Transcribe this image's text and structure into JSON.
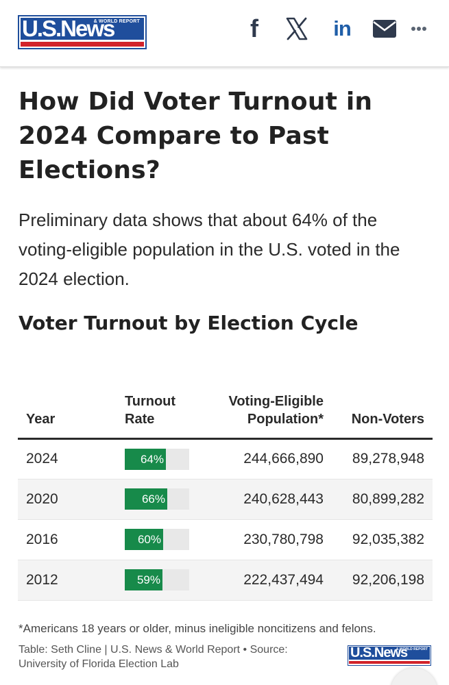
{
  "header": {
    "logo": {
      "main": "U.S.News",
      "sub": "& WORLD REPORT"
    },
    "share": {
      "facebook_label": "f",
      "linkedin_label": "in",
      "icons": [
        "facebook-icon",
        "x-icon",
        "linkedin-icon",
        "mail-icon",
        "more-icon"
      ]
    }
  },
  "article": {
    "title": "How Did Voter Turnout in 2024 Compare to Past Elections?",
    "intro": "Preliminary data shows that about 64% of the voting-eligible population in the U.S. voted in the 2024 election.",
    "table_title": "Voter Turnout by Election Cycle"
  },
  "table": {
    "headers": {
      "year": "Year",
      "rate": "Turnout Rate",
      "vep": "Voting-Eligible Population*",
      "non": "Non-Voters"
    },
    "rows": [
      {
        "year": "2024",
        "rate": "64%",
        "rate_value": 64,
        "vep": "244,666,890",
        "non": "89,278,948"
      },
      {
        "year": "2020",
        "rate": "66%",
        "rate_value": 66,
        "vep": "240,628,443",
        "non": "80,899,282"
      },
      {
        "year": "2016",
        "rate": "60%",
        "rate_value": 60,
        "vep": "230,780,798",
        "non": "92,035,382"
      },
      {
        "year": "2012",
        "rate": "59%",
        "rate_value": 59,
        "vep": "222,437,494",
        "non": "92,206,198"
      }
    ]
  },
  "footer": {
    "footnote": "*Americans 18 years or older, minus ineligible noncitizens and felons.",
    "credit": "Table: Seth Cline | U.S. News & World Report • Source: University of Florida Election Lab",
    "logo": {
      "main": "U.S.News",
      "sub": "& WORLD REPORT"
    }
  },
  "colors": {
    "brand_blue": "#1f4e9c",
    "brand_red": "#d2232a",
    "bar_green": "#178a4a",
    "bar_track": "#e8e8e8"
  }
}
